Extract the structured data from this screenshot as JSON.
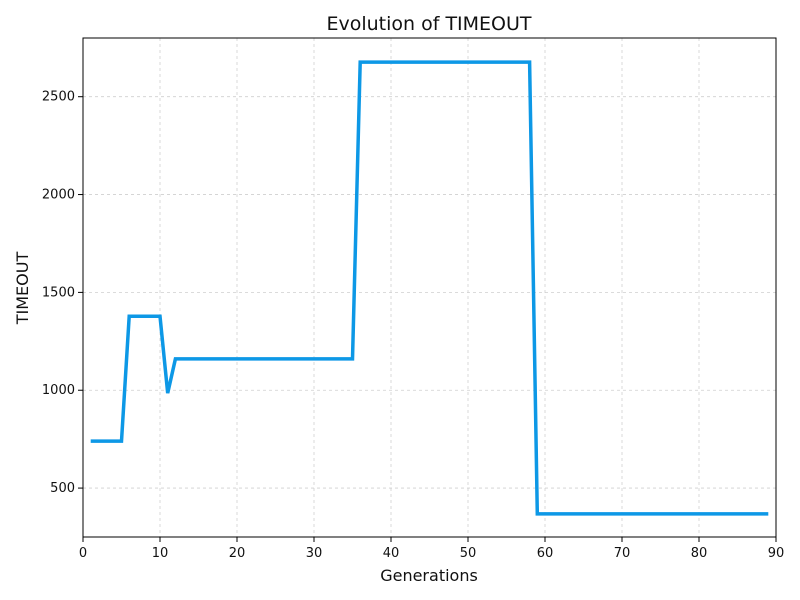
{
  "chart_data": {
    "type": "line",
    "title": "Evolution of TIMEOUT",
    "xlabel": "Generations",
    "ylabel": "TIMEOUT",
    "xlim": [
      0,
      90
    ],
    "ylim": [
      250,
      2800
    ],
    "x_ticks": [
      0,
      10,
      20,
      30,
      40,
      50,
      60,
      70,
      80,
      90
    ],
    "y_ticks": [
      500,
      1000,
      1500,
      2000,
      2500
    ],
    "grid": true,
    "series": [
      {
        "color": "#0d98e6",
        "x": [
          1,
          2,
          3,
          4,
          5,
          6,
          7,
          8,
          9,
          10,
          11,
          12,
          13,
          14,
          15,
          16,
          17,
          18,
          19,
          20,
          21,
          22,
          23,
          24,
          25,
          26,
          27,
          28,
          29,
          30,
          31,
          32,
          33,
          34,
          35,
          36,
          37,
          38,
          39,
          40,
          41,
          42,
          43,
          44,
          45,
          46,
          47,
          48,
          49,
          50,
          51,
          52,
          53,
          54,
          55,
          56,
          57,
          58,
          59,
          60,
          61,
          62,
          63,
          64,
          65,
          66,
          67,
          68,
          69,
          70,
          71,
          72,
          73,
          74,
          75,
          76,
          77,
          78,
          79,
          80,
          81,
          82,
          83,
          84,
          85,
          86,
          87,
          88,
          89
        ],
        "y": [
          740,
          740,
          740,
          740,
          740,
          1378,
          1378,
          1378,
          1378,
          1378,
          985,
          1160,
          1160,
          1160,
          1160,
          1160,
          1160,
          1160,
          1160,
          1160,
          1160,
          1160,
          1160,
          1160,
          1160,
          1160,
          1160,
          1160,
          1160,
          1160,
          1160,
          1160,
          1160,
          1160,
          1160,
          2677,
          2677,
          2677,
          2677,
          2677,
          2677,
          2677,
          2677,
          2677,
          2677,
          2677,
          2677,
          2677,
          2677,
          2677,
          2677,
          2677,
          2677,
          2677,
          2677,
          2677,
          2677,
          2677,
          368,
          368,
          368,
          368,
          368,
          368,
          368,
          368,
          368,
          368,
          368,
          368,
          368,
          368,
          368,
          368,
          368,
          368,
          368,
          368,
          368,
          368,
          368,
          368,
          368,
          368,
          368,
          368,
          368,
          368,
          368
        ]
      }
    ]
  }
}
